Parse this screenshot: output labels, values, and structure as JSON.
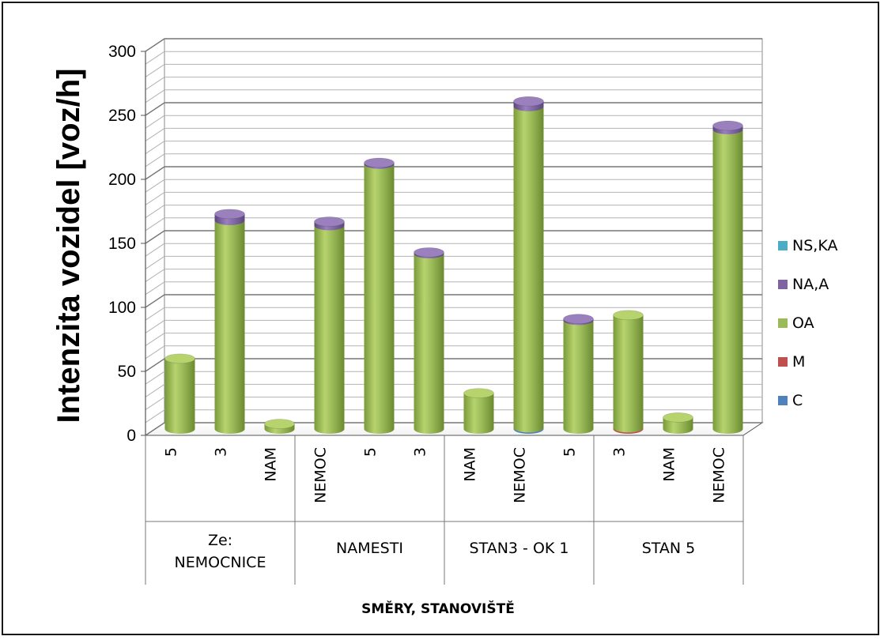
{
  "chart_data": {
    "type": "bar",
    "style": "3d-cylinder-stacked",
    "xlabel": "SMĚRY, STANOVIŠTĚ",
    "ylabel": "Intenzita vozidel [voz/h]",
    "ylim": [
      0,
      300
    ],
    "yticks": [
      "0",
      "50",
      "100",
      "150",
      "200",
      "250",
      "300"
    ],
    "grid": true,
    "legend_position": "right",
    "groups": [
      {
        "label_lines": [
          "Ze:",
          "NEMOCNICE"
        ],
        "categories": [
          "5",
          "3",
          "NAM"
        ]
      },
      {
        "label_lines": [
          "NAMESTI"
        ],
        "categories": [
          "NEMOC",
          "5",
          "3"
        ]
      },
      {
        "label_lines": [
          "STAN3 - OK 1"
        ],
        "categories": [
          "NAM",
          "NEMOC",
          "5"
        ]
      },
      {
        "label_lines": [
          "STAN 5"
        ],
        "categories": [
          "3",
          "NAM",
          "NEMOC"
        ]
      }
    ],
    "series": [
      {
        "name": "C",
        "color": "#4f81bd",
        "values": [
          0,
          0,
          0,
          0,
          0,
          0,
          0,
          1,
          0,
          0,
          0,
          0
        ]
      },
      {
        "name": "M",
        "color": "#c0504d",
        "values": [
          0,
          0,
          0,
          0,
          0,
          0,
          0,
          0,
          0,
          1,
          0,
          0
        ]
      },
      {
        "name": "OA",
        "color": "#9bbb59",
        "values": [
          55,
          163,
          4,
          159,
          207,
          137,
          28,
          251,
          85,
          88,
          9,
          234
        ]
      },
      {
        "name": "NA,A",
        "color": "#8064a2",
        "values": [
          0,
          5,
          0,
          3,
          1,
          1,
          0,
          4,
          1,
          0,
          0,
          3
        ]
      },
      {
        "name": "NS,KA",
        "color": "#4bacc6",
        "values": [
          0,
          0,
          0,
          0,
          0,
          0,
          0,
          0,
          0,
          0,
          0,
          0
        ]
      }
    ],
    "legend_order": [
      "NS,KA",
      "NA,A",
      "OA",
      "M",
      "C"
    ]
  }
}
